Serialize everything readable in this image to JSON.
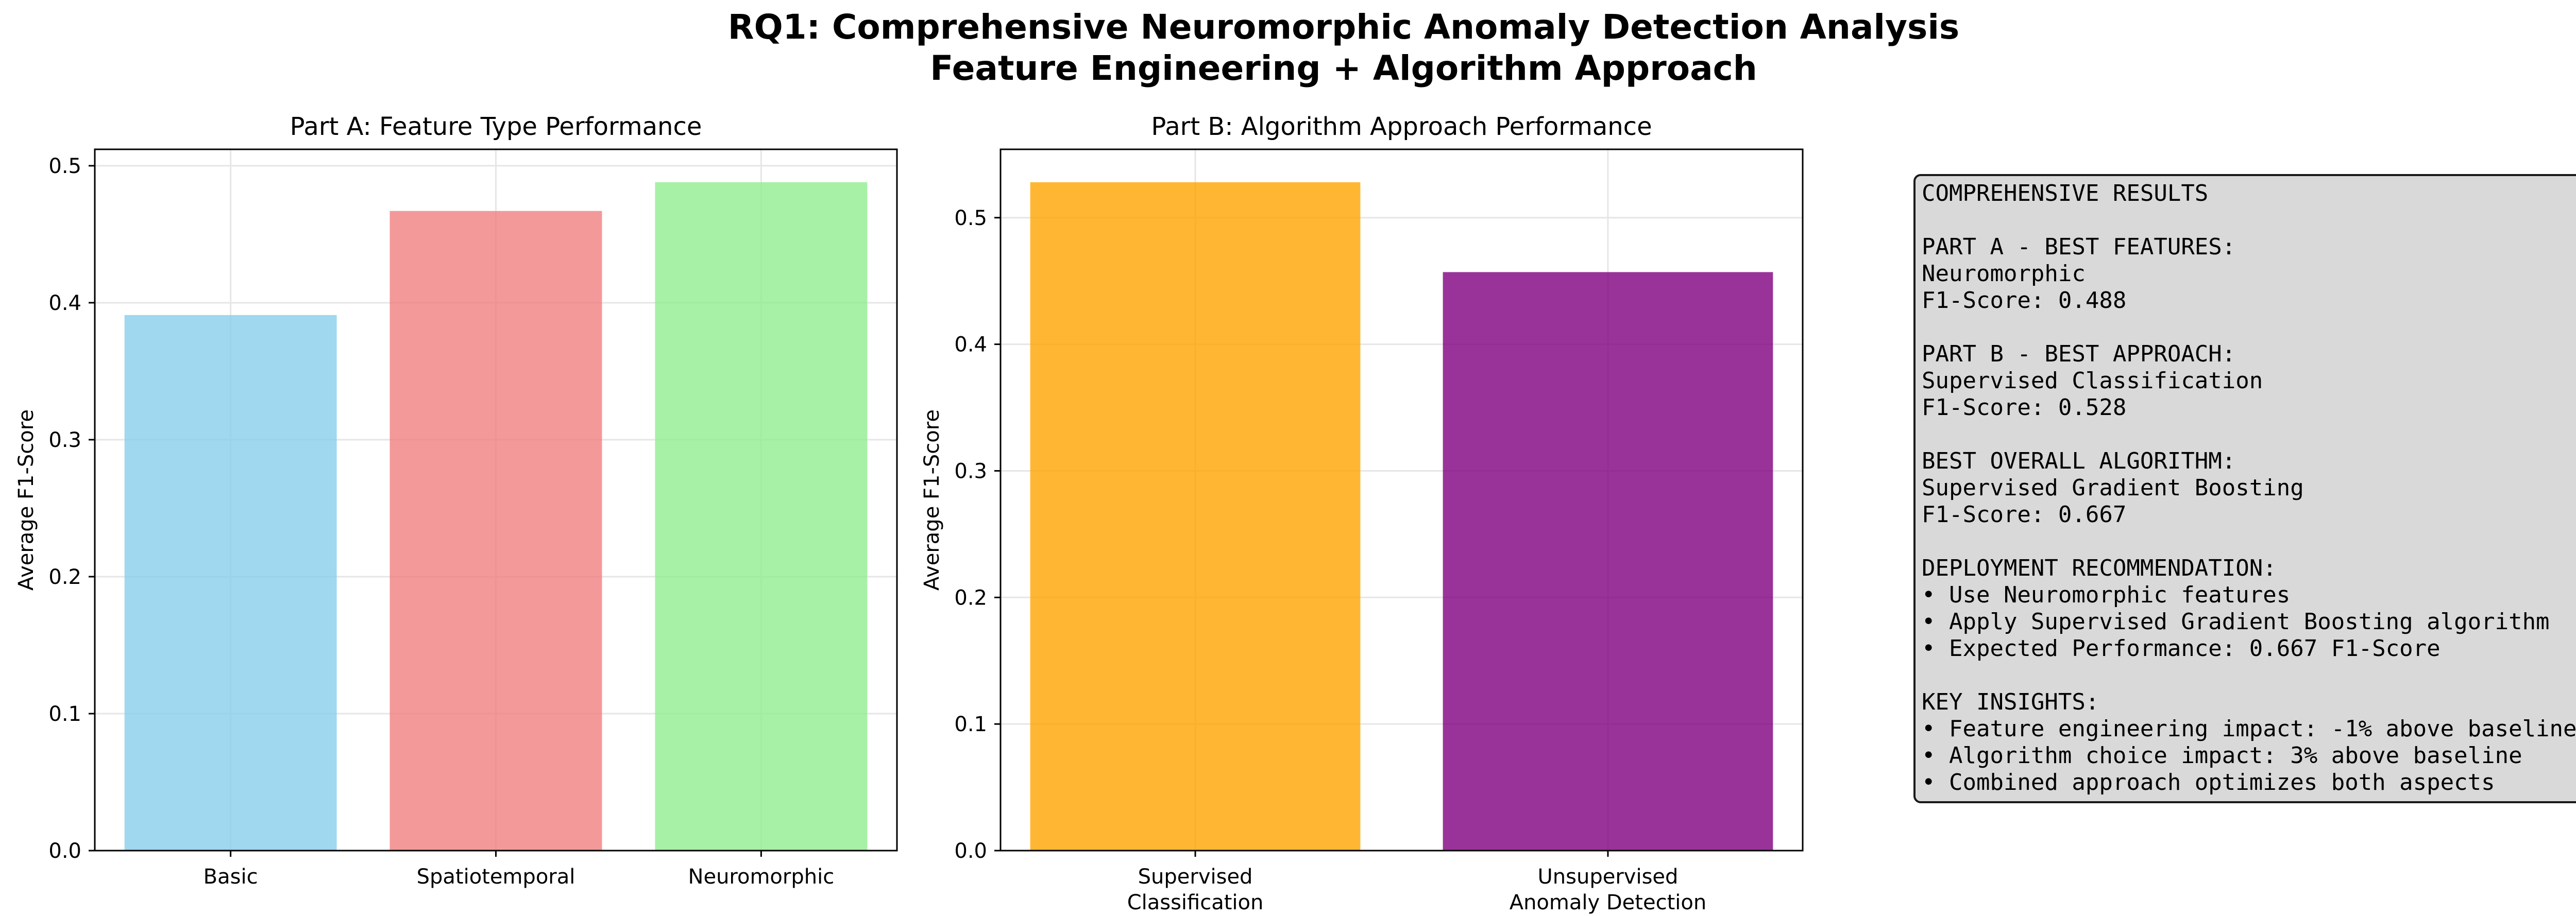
{
  "figure": {
    "title_line1": "RQ1: Comprehensive Neuromorphic Anomaly Detection Analysis",
    "title_line2": "Feature Engineering + Algorithm Approach"
  },
  "chart_data": [
    {
      "type": "bar",
      "title": "Part A: Feature Type Performance",
      "xlabel": "",
      "ylabel": "Average F1-Score",
      "categories": [
        "Basic",
        "Spatiotemporal",
        "Neuromorphic"
      ],
      "values": [
        0.391,
        0.467,
        0.488
      ],
      "colors": [
        "#87ceeb",
        "#f08080",
        "#90ee90"
      ],
      "bar_opacity": 0.8,
      "ylim": [
        0,
        0.512
      ],
      "yticks": [
        0.0,
        0.1,
        0.2,
        0.3,
        0.4,
        0.5
      ],
      "grid": true
    },
    {
      "type": "bar",
      "title": "Part B: Algorithm Approach Performance",
      "xlabel": "",
      "ylabel": "Average F1-Score",
      "categories": [
        "Supervised\nClassification",
        "Unsupervised\nAnomaly Detection"
      ],
      "values": [
        0.528,
        0.457
      ],
      "colors": [
        "#ffa500",
        "#800080"
      ],
      "bar_opacity": 0.8,
      "ylim": [
        0,
        0.554
      ],
      "yticks": [
        0.0,
        0.1,
        0.2,
        0.3,
        0.4,
        0.5
      ],
      "grid": true
    }
  ],
  "summary_box": {
    "lines": [
      "COMPREHENSIVE RESULTS",
      "",
      "PART A - BEST FEATURES:",
      "Neuromorphic",
      "F1-Score: 0.488",
      "",
      "PART B - BEST APPROACH:",
      "Supervised Classification",
      "F1-Score: 0.528",
      "",
      "BEST OVERALL ALGORITHM:",
      "Supervised Gradient Boosting",
      "F1-Score: 0.667",
      "",
      "DEPLOYMENT RECOMMENDATION:",
      "• Use Neuromorphic features",
      "• Apply Supervised Gradient Boosting algorithm",
      "• Expected Performance: 0.667 F1-Score",
      "",
      "KEY INSIGHTS:",
      "• Feature engineering impact: -1% above baseline",
      "• Algorithm choice impact: 3% above baseline",
      "• Combined approach optimizes both aspects"
    ]
  }
}
